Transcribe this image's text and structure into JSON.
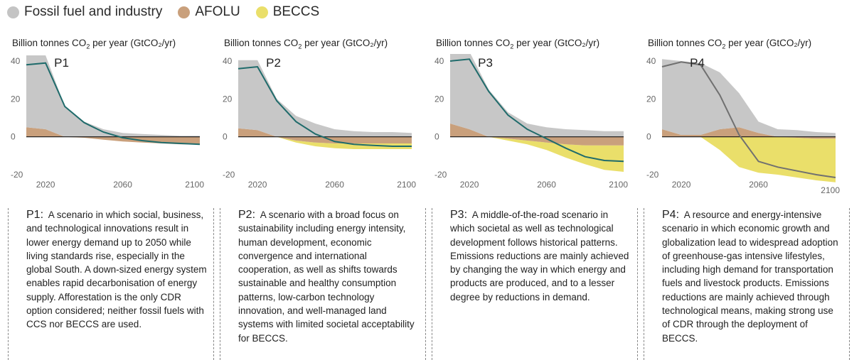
{
  "legend": [
    {
      "label": "Fossil fuel and industry",
      "color": "#c4c4c4"
    },
    {
      "label": "AFOLU",
      "color": "#c9a07c"
    },
    {
      "label": "BECCS",
      "color": "#eadf6a"
    }
  ],
  "colors": {
    "fossil": "#c4c4c4",
    "afolu": "#c9a07c",
    "beccs": "#eadf6a",
    "net_p1_p3": "#1f6b6b",
    "net_p4": "#707070"
  },
  "unit_label": {
    "prefix": "Billion tonnes CO",
    "sub": "2",
    "suffix": " per year (GtCO₂/yr)"
  },
  "chart_data": [
    {
      "type": "area",
      "title": "P1",
      "ylabel": "Billion tonnes CO2 per year (GtCO2/yr)",
      "x": [
        2010,
        2020,
        2030,
        2040,
        2050,
        2060,
        2070,
        2080,
        2090,
        2100
      ],
      "xlim": [
        2010,
        2100
      ],
      "ylim": [
        -20,
        40
      ],
      "yticks": [
        40,
        20,
        0,
        -20
      ],
      "xticks": [
        2020,
        2060,
        2100
      ],
      "series": [
        {
          "name": "Fossil fuel and industry",
          "values": [
            38,
            39,
            16,
            8,
            4,
            2,
            1.5,
            1,
            0.5,
            0.5
          ]
        },
        {
          "name": "AFOLU",
          "values": [
            5,
            4,
            0,
            -0.5,
            -1.5,
            -2.5,
            -3,
            -3.5,
            -4,
            -4
          ]
        },
        {
          "name": "BECCS",
          "values": [
            0,
            0,
            0,
            0,
            0,
            0,
            0,
            0,
            0,
            0
          ]
        }
      ],
      "net": [
        38,
        39,
        16,
        7.5,
        2.5,
        -0.5,
        -2,
        -3,
        -3.5,
        -4
      ]
    },
    {
      "type": "area",
      "title": "P2",
      "ylabel": "Billion tonnes CO2 per year (GtCO2/yr)",
      "x": [
        2010,
        2020,
        2030,
        2040,
        2050,
        2060,
        2070,
        2080,
        2090,
        2100
      ],
      "xlim": [
        2010,
        2100
      ],
      "ylim": [
        -20,
        40
      ],
      "yticks": [
        40,
        20,
        0,
        -20
      ],
      "xticks": [
        2020,
        2060,
        2100
      ],
      "series": [
        {
          "name": "Fossil fuel and industry",
          "values": [
            36,
            37,
            20,
            11,
            7,
            4,
            3,
            2.5,
            2.5,
            2
          ]
        },
        {
          "name": "AFOLU",
          "values": [
            4.5,
            3.5,
            0,
            -2,
            -3,
            -3.5,
            -3.5,
            -3.5,
            -3.5,
            -3.5
          ]
        },
        {
          "name": "BECCS",
          "values": [
            0,
            0,
            0,
            -1,
            -2,
            -2.5,
            -3,
            -3,
            -3,
            -3
          ]
        }
      ],
      "net": [
        36,
        37,
        19,
        8,
        1.5,
        -2.5,
        -4,
        -4.5,
        -5,
        -5
      ]
    },
    {
      "type": "area",
      "title": "P3",
      "ylabel": "Billion tonnes CO2 per year (GtCO2/yr)",
      "x": [
        2010,
        2020,
        2030,
        2040,
        2050,
        2060,
        2070,
        2080,
        2090,
        2100
      ],
      "xlim": [
        2010,
        2100
      ],
      "ylim": [
        -20,
        40
      ],
      "yticks": [
        40,
        20,
        0,
        -20
      ],
      "xticks": [
        2020,
        2060,
        2100
      ],
      "series": [
        {
          "name": "Fossil fuel and industry",
          "values": [
            40,
            41,
            25,
            13,
            7,
            5,
            4,
            3.5,
            3,
            3
          ]
        },
        {
          "name": "AFOLU",
          "values": [
            7,
            4,
            0,
            -1,
            -2,
            -3,
            -4,
            -4.5,
            -4.5,
            -4.5
          ]
        },
        {
          "name": "BECCS",
          "values": [
            0,
            0,
            0,
            -1,
            -2,
            -4,
            -7,
            -10,
            -13,
            -14
          ]
        }
      ],
      "net": [
        40,
        41,
        24,
        11.5,
        4,
        -1,
        -6,
        -10.5,
        -12.5,
        -13
      ]
    },
    {
      "type": "area",
      "title": "P4",
      "ylabel": "Billion tonnes CO2 per year (GtCO2/yr)",
      "x": [
        2010,
        2020,
        2030,
        2040,
        2050,
        2060,
        2070,
        2080,
        2090,
        2100
      ],
      "xlim": [
        2010,
        2100
      ],
      "ylim": [
        -20,
        40
      ],
      "yticks": [
        40,
        20,
        0,
        -20
      ],
      "xticks": [
        2020,
        2060,
        2100
      ],
      "series": [
        {
          "name": "Fossil fuel and industry",
          "values": [
            37,
            39,
            38,
            30,
            18,
            6,
            4,
            3.5,
            2.5,
            2
          ]
        },
        {
          "name": "AFOLU",
          "values": [
            4,
            1,
            1,
            4,
            5,
            2,
            0,
            -0.5,
            -1,
            -1
          ]
        },
        {
          "name": "BECCS",
          "values": [
            0,
            0,
            0,
            -7,
            -16,
            -19,
            -20,
            -21,
            -22,
            -23
          ]
        }
      ],
      "net": [
        37,
        39.5,
        38,
        22,
        1,
        -13,
        -16,
        -18,
        -20,
        -21.5
      ]
    }
  ],
  "descriptions": [
    {
      "id": "P1:",
      "text": "A scenario in which social, business, and technological innovations result in lower energy demand up to 2050 while living standards rise, especially in the global South. A down-sized energy system enables rapid decarbonisation of energy supply. Afforestation is the only CDR option considered; neither fossil fuels with CCS nor BECCS are used."
    },
    {
      "id": "P2:",
      "text": "A scenario with a broad focus on sustainability including energy intensity, human development, economic convergence and international cooperation, as well as shifts towards sustainable and healthy consumption patterns, low-carbon technology innovation, and well-managed land systems with limited societal acceptability for BECCS."
    },
    {
      "id": "P3:",
      "text": "A middle-of-the-road scenario in which societal as well as technological development follows historical patterns. Emissions reductions are mainly achieved by changing the way in which energy and products are produced, and to a lesser degree by reductions in demand."
    },
    {
      "id": "P4:",
      "text": "A resource and energy-intensive scenario in which economic growth and globalization lead to widespread adoption of greenhouse-gas intensive lifestyles, including high demand for transportation fuels and livestock products. Emissions reductions are mainly achieved through technological means, making strong use of CDR through the deployment of BECCS."
    }
  ]
}
